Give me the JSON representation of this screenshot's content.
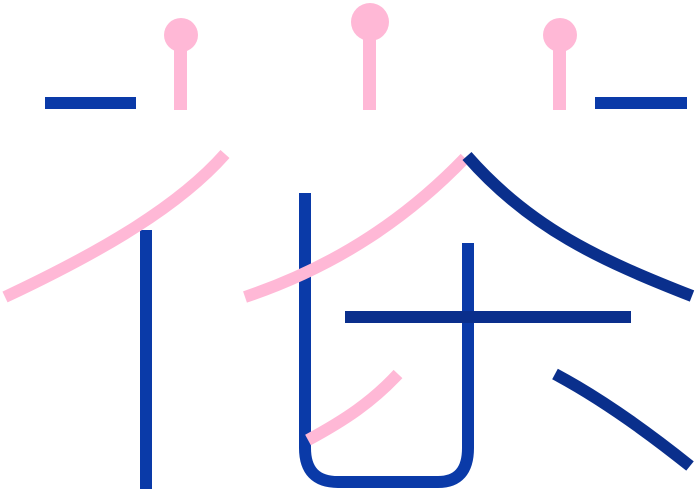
{
  "artwork": {
    "description_free": true,
    "colors": {
      "background": "#ffffff",
      "blue_stroke": "#0a3aa8",
      "navy_stroke": "#0a2f8c",
      "pink_accent": "#ffb8d6"
    },
    "elements": {
      "top_pins": [
        "pin-left",
        "pin-center",
        "pin-right"
      ],
      "strokes": [
        "left-horizontal",
        "right-horizontal",
        "left-vertical",
        "center-vertical-with-hook",
        "inner-vertical",
        "long-horizontal",
        "left-diagonal",
        "center-diagonal",
        "right-diagonal",
        "lower-right-diagonal",
        "lower-pink-diagonal"
      ]
    }
  }
}
